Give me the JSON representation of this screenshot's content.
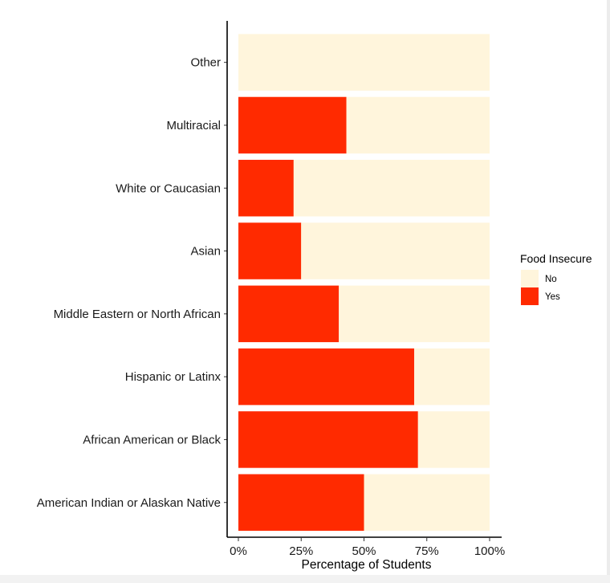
{
  "chart_data": {
    "type": "bar",
    "orientation": "horizontal",
    "stacked": true,
    "categories": [
      "American Indian or Alaskan Native",
      "African American or Black",
      "Hispanic or Latinx",
      "Middle Eastern or North African",
      "Asian",
      "White or Caucasian",
      "Multiracial",
      "Other"
    ],
    "series": [
      {
        "name": "Yes",
        "color": "#ff2a00",
        "values": [
          0.5,
          0.715,
          0.7,
          0.4,
          0.25,
          0.22,
          0.43,
          0.0
        ]
      },
      {
        "name": "No",
        "color": "#fff5dc",
        "values": [
          0.5,
          0.285,
          0.3,
          0.6,
          0.75,
          0.78,
          0.57,
          1.0
        ]
      }
    ],
    "xlabel": "Percentage of Students",
    "ylabel": "",
    "xlim": [
      0,
      1
    ],
    "x_ticks": [
      0,
      0.25,
      0.5,
      0.75,
      1.0
    ],
    "x_tick_labels": [
      "0%",
      "25%",
      "50%",
      "75%",
      "100%"
    ],
    "grid": false,
    "legend": {
      "title": "Food Insecure",
      "placement": "right",
      "entries": [
        {
          "label": "No",
          "color": "#fff5dc"
        },
        {
          "label": "Yes",
          "color": "#ff2a00"
        }
      ]
    }
  }
}
